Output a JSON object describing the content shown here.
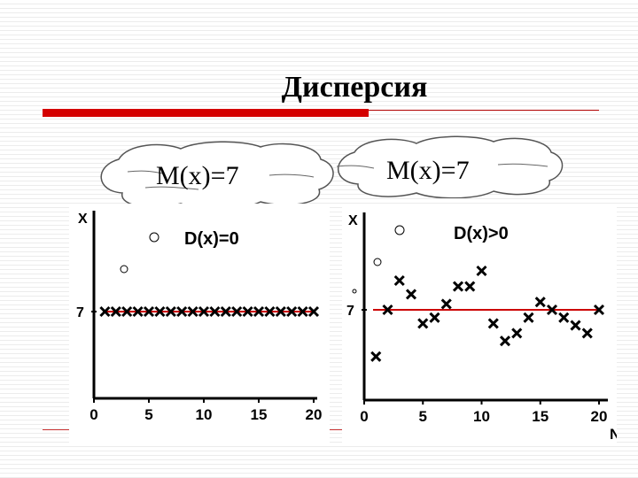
{
  "slide": {
    "title": "Дисперсия"
  },
  "clouds": [
    {
      "text": "M(x)=7"
    },
    {
      "text": "M(x)=7"
    }
  ],
  "colors": {
    "accent": "#d40000",
    "mean_line": "#cc0000",
    "marker": "#000000"
  },
  "chart_data": [
    {
      "type": "scatter",
      "annotation": "D(x)=0",
      "ylabel": "X",
      "xlabel": "",
      "y_tick": "7",
      "x_ticks": [
        "0",
        "5",
        "10",
        "15",
        "20"
      ],
      "xlim": [
        0,
        20
      ],
      "mean_line": 7,
      "x": [
        1,
        2,
        3,
        4,
        5,
        6,
        7,
        8,
        9,
        10,
        11,
        12,
        13,
        14,
        15,
        16,
        17,
        18,
        19,
        20
      ],
      "y": [
        7,
        7,
        7,
        7,
        7,
        7,
        7,
        7,
        7,
        7,
        7,
        7,
        7,
        7,
        7,
        7,
        7,
        7,
        7,
        7
      ]
    },
    {
      "type": "scatter",
      "annotation": "D(x)>0",
      "ylabel": "X",
      "xlabel": "N",
      "y_tick": "7",
      "x_ticks": [
        "0",
        "5",
        "10",
        "15",
        "20"
      ],
      "xlim": [
        0,
        20
      ],
      "mean_line": 7,
      "x": [
        1,
        2,
        3,
        4,
        5,
        6,
        7,
        8,
        9,
        10,
        11,
        12,
        13,
        14,
        15,
        16,
        17,
        18,
        19,
        20
      ],
      "y": [
        4.6,
        7.0,
        8.5,
        7.8,
        6.3,
        6.6,
        7.3,
        8.2,
        8.2,
        9.0,
        6.3,
        5.4,
        5.8,
        6.6,
        7.4,
        7.0,
        6.6,
        6.2,
        5.8,
        7.0
      ]
    }
  ]
}
